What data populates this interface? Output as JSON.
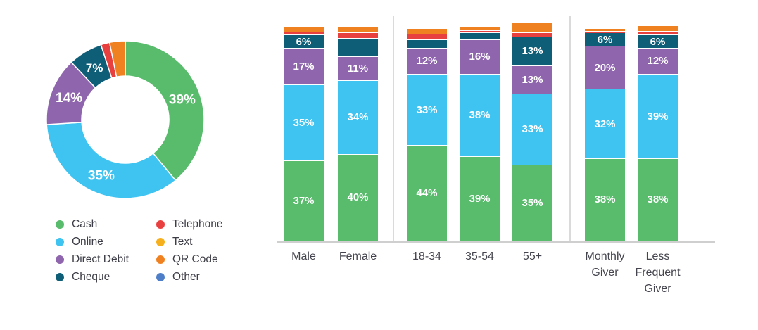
{
  "colors": {
    "cash": "#58BC6C",
    "online": "#3FC3F1",
    "direct_debit": "#8F65AE",
    "cheque": "#0F5E78",
    "telephone": "#E8403E",
    "text": "#F6B01E",
    "qr_code": "#F08121",
    "other": "#4E7EC8",
    "axis_label": "#45454F",
    "divider": "#DADADA"
  },
  "legend": {
    "columns": [
      [
        {
          "key": "cash",
          "label": "Cash"
        },
        {
          "key": "online",
          "label": "Online"
        },
        {
          "key": "direct_debit",
          "label": "Direct Debit"
        },
        {
          "key": "cheque",
          "label": "Cheque"
        }
      ],
      [
        {
          "key": "telephone",
          "label": "Telephone"
        },
        {
          "key": "text",
          "label": "Text"
        },
        {
          "key": "qr_code",
          "label": "QR Code"
        },
        {
          "key": "other",
          "label": "Other"
        }
      ]
    ]
  },
  "chart_data": [
    {
      "type": "pie",
      "subtype": "donut",
      "legend_position": "bottom-left",
      "categories": [
        "Cash",
        "Online",
        "Direct Debit",
        "Cheque",
        "Telephone",
        "QR Code"
      ],
      "color_keys": [
        "cash",
        "online",
        "direct_debit",
        "cheque",
        "telephone",
        "qr_code"
      ],
      "values": [
        39,
        35,
        14,
        7,
        1.8,
        3.2
      ],
      "labels": [
        "39%",
        "35%",
        "14%",
        "7%",
        "",
        ""
      ]
    },
    {
      "type": "bar",
      "subtype": "stacked-percent",
      "grid": false,
      "categories": [
        "Male",
        "Female",
        "18-34",
        "35-54",
        "55+",
        "Monthly\nGiver",
        "Less\nFrequent\nGiver"
      ],
      "group_breaks_after": [
        "Female",
        "55+"
      ],
      "series": [
        {
          "name": "Cash",
          "color_key": "cash",
          "values": [
            37,
            40,
            44,
            39,
            35,
            38,
            38
          ],
          "labels": [
            "37%",
            "40%",
            "44%",
            "39%",
            "35%",
            "38%",
            "38%"
          ]
        },
        {
          "name": "Online",
          "color_key": "online",
          "values": [
            35,
            34,
            33,
            38,
            33,
            32,
            39
          ],
          "labels": [
            "35%",
            "34%",
            "33%",
            "38%",
            "33%",
            "32%",
            "39%"
          ]
        },
        {
          "name": "Direct Debit",
          "color_key": "direct_debit",
          "values": [
            17,
            11,
            12,
            16,
            13,
            20,
            12
          ],
          "labels": [
            "17%",
            "11%",
            "12%",
            "16%",
            "13%",
            "20%",
            "12%"
          ]
        },
        {
          "name": "Cheque",
          "color_key": "cheque",
          "values": [
            6,
            8.5,
            4,
            3,
            13,
            6,
            6
          ],
          "labels": [
            "6%",
            "",
            "",
            "",
            "13%",
            "6%",
            "6%"
          ]
        },
        {
          "name": "Telephone",
          "color_key": "telephone",
          "values": [
            1.5,
            2.5,
            2.3,
            1.2,
            2,
            0.6,
            1.8
          ],
          "labels": [
            "",
            "",
            "",
            "",
            "",
            "",
            ""
          ]
        },
        {
          "name": "QR Code",
          "color_key": "qr_code",
          "values": [
            2.5,
            3,
            2.7,
            1.8,
            5,
            1.4,
            2.6
          ],
          "labels": [
            "",
            "",
            "",
            "",
            "",
            "",
            ""
          ]
        }
      ]
    }
  ]
}
